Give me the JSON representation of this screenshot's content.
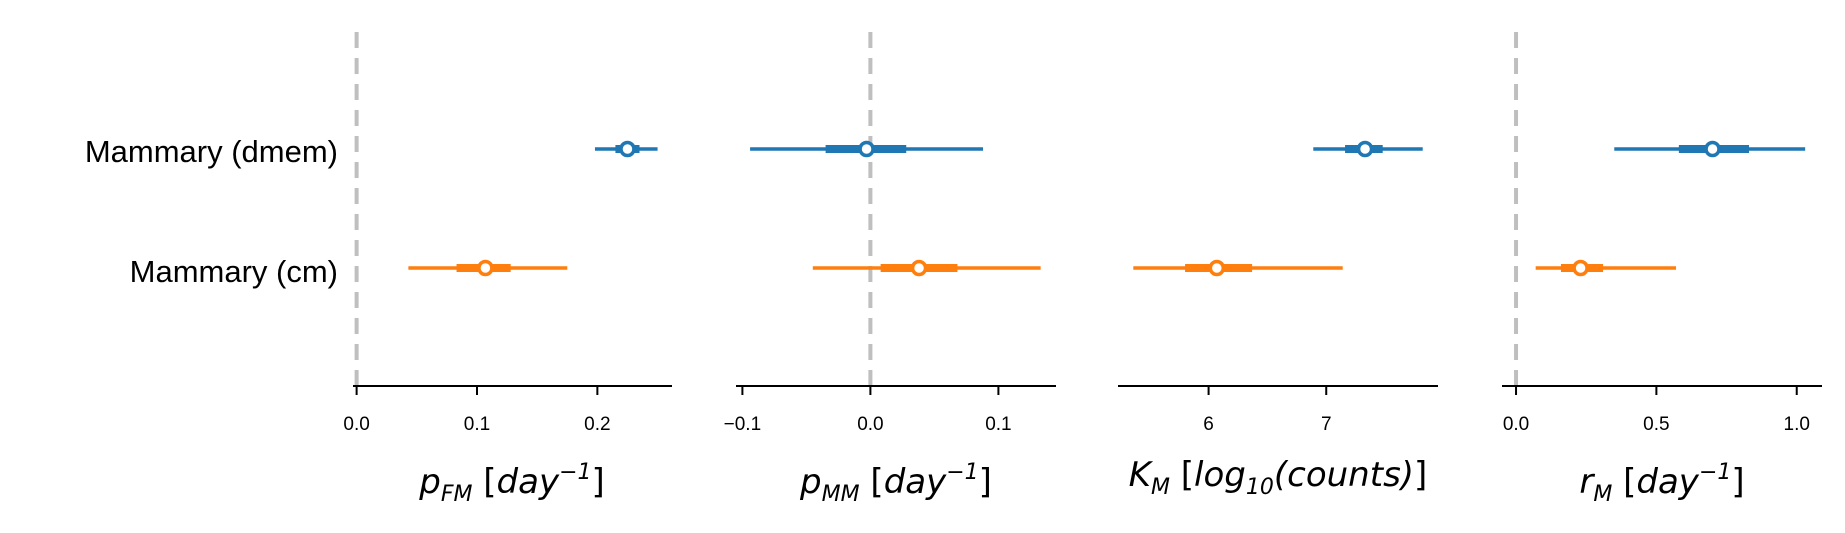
{
  "rows": [
    "Mammary (dmem)",
    "Mammary (cm)"
  ],
  "colors": {
    "dmem": "#1f77b4",
    "cm": "#ff7f0e",
    "zero_line": "#bfbfbf",
    "axis": "#000000"
  },
  "chart_data": [
    {
      "type": "forest",
      "xlabel": "p_FM [day^-1]",
      "xlim": [
        -0.003,
        0.262
      ],
      "ticks": [
        "0.0",
        "0.1",
        "0.2"
      ],
      "tick_values": [
        0.0,
        0.1,
        0.2
      ],
      "zero_line": true,
      "series": [
        {
          "category": "Mammary (dmem)",
          "mean": 0.225,
          "iqr": [
            0.215,
            0.235
          ],
          "hdi": [
            0.198,
            0.25
          ]
        },
        {
          "category": "Mammary (cm)",
          "mean": 0.107,
          "iqr": [
            0.083,
            0.128
          ],
          "hdi": [
            0.043,
            0.175
          ]
        }
      ]
    },
    {
      "type": "forest",
      "xlabel": "p_MM [day^-1]",
      "xlim": [
        -0.105,
        0.145
      ],
      "ticks": [
        "−0.1",
        "0.0",
        "0.1"
      ],
      "tick_values": [
        -0.1,
        0.0,
        0.1
      ],
      "zero_line": true,
      "series": [
        {
          "category": "Mammary (dmem)",
          "mean": -0.003,
          "iqr": [
            -0.035,
            0.028
          ],
          "hdi": [
            -0.094,
            0.088
          ]
        },
        {
          "category": "Mammary (cm)",
          "mean": 0.038,
          "iqr": [
            0.008,
            0.068
          ],
          "hdi": [
            -0.045,
            0.133
          ]
        }
      ]
    },
    {
      "type": "forest",
      "xlabel": "K_M [log10(counts)]",
      "xlim": [
        5.23,
        7.95
      ],
      "ticks": [
        "6",
        "7"
      ],
      "tick_values": [
        6,
        7
      ],
      "zero_line": false,
      "series": [
        {
          "category": "Mammary (dmem)",
          "mean": 7.33,
          "iqr": [
            7.16,
            7.48
          ],
          "hdi": [
            6.89,
            7.82
          ]
        },
        {
          "category": "Mammary (cm)",
          "mean": 6.07,
          "iqr": [
            5.8,
            6.37
          ],
          "hdi": [
            5.36,
            7.14
          ]
        }
      ]
    },
    {
      "type": "forest",
      "xlabel": "r_M [day^-1]",
      "xlim": [
        -0.05,
        1.09
      ],
      "ticks": [
        "0.0",
        "0.5",
        "1.0"
      ],
      "tick_values": [
        0.0,
        0.5,
        1.0
      ],
      "zero_line": true,
      "series": [
        {
          "category": "Mammary (dmem)",
          "mean": 0.7,
          "iqr": [
            0.58,
            0.83
          ],
          "hdi": [
            0.35,
            1.03
          ]
        },
        {
          "category": "Mammary (cm)",
          "mean": 0.23,
          "iqr": [
            0.16,
            0.31
          ],
          "hdi": [
            0.07,
            0.57
          ]
        }
      ]
    }
  ],
  "axis_labels": {
    "pfm": {
      "base": "p",
      "sub": "FM",
      "unit_open": " [",
      "unit_base": "day",
      "sup": "−1",
      "unit_close": "]"
    },
    "pmm": {
      "base": "p",
      "sub": "MM",
      "unit_open": " [",
      "unit_base": "day",
      "sup": "−1",
      "unit_close": "]"
    },
    "km": {
      "base": "K",
      "sub": "M",
      "unit_open": " [",
      "unit_base": "log",
      "sub2": "10",
      "unit_mid": "(counts)",
      "unit_close": "]"
    },
    "rm": {
      "base": "r",
      "sub": "M",
      "unit_open": " [",
      "unit_base": "day",
      "sup": "−1",
      "unit_close": "]"
    }
  }
}
